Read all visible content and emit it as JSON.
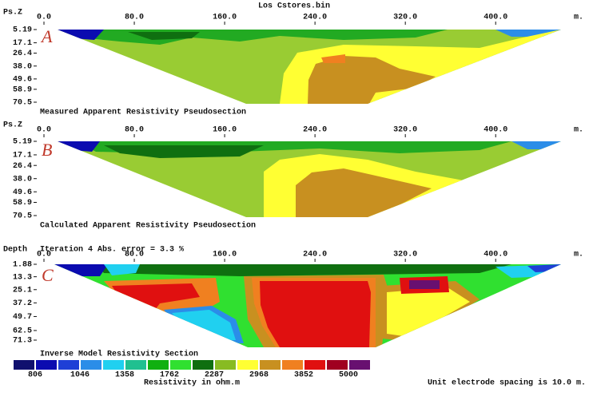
{
  "title": "Los Cstores.bin",
  "chart_data": [
    {
      "type": "pseudosection",
      "panel_label": "A",
      "y_label": "Ps.Z",
      "x_unit": "m.",
      "caption": "Measured Apparent Resistivity Pseudosection",
      "xlim": [
        0,
        460
      ],
      "xticks": [
        {
          "value": 0,
          "label": "0.0"
        },
        {
          "value": 80,
          "label": "80.0"
        },
        {
          "value": 160,
          "label": "160.0"
        },
        {
          "value": 240,
          "label": "240.0"
        },
        {
          "value": 320,
          "label": "320.0"
        },
        {
          "value": 400,
          "label": "400.0"
        }
      ],
      "ylim": [
        5.19,
        70.5
      ],
      "yticks": [
        5.19,
        17.1,
        26.4,
        {
          "value": 38,
          "label": "38.0"
        },
        49.6,
        58.9,
        70.5
      ]
    },
    {
      "type": "pseudosection",
      "panel_label": "B",
      "y_label": "Ps.Z",
      "x_unit": "m.",
      "caption": "Calculated Apparent Resistivity Pseudosection",
      "xlim": [
        0,
        460
      ],
      "xticks": [
        {
          "value": 0,
          "label": "0.0"
        },
        {
          "value": 80,
          "label": "80.0"
        },
        {
          "value": 160,
          "label": "160.0"
        },
        {
          "value": 240,
          "label": "240.0"
        },
        {
          "value": 320,
          "label": "320.0"
        },
        {
          "value": 400,
          "label": "400.0"
        }
      ],
      "ylim": [
        5.19,
        70.5
      ],
      "yticks": [
        5.19,
        17.1,
        26.4,
        {
          "value": 38,
          "label": "38.0"
        },
        49.6,
        58.9,
        70.5
      ]
    },
    {
      "type": "pseudosection",
      "panel_label": "C",
      "y_label": "Depth",
      "x_unit": "m.",
      "subtitle": "Iteration 4 Abs. error = 3.3 %",
      "caption": "Inverse Model Resistivity Section",
      "xlim": [
        0,
        460
      ],
      "xticks": [
        {
          "value": 0,
          "label": "0.0"
        },
        {
          "value": 80,
          "label": "80.0"
        },
        {
          "value": 160,
          "label": "160.0"
        },
        {
          "value": 240,
          "label": "240.0"
        },
        {
          "value": 320,
          "label": "320.0"
        },
        {
          "value": 400,
          "label": "400.0"
        }
      ],
      "ylim": [
        1.88,
        71.3
      ],
      "yticks": [
        1.88,
        13.3,
        25.1,
        37.2,
        49.7,
        62.5,
        71.3
      ],
      "colorbar": {
        "title": "Resistivity in ohm.m",
        "colors": [
          "#10106e",
          "#0b0bb0",
          "#1f3fd6",
          "#2b8de8",
          "#20d0f0",
          "#20c090",
          "#10b010",
          "#30e030",
          "#0f6f10",
          "#88bb22",
          "#ffff33",
          "#c89020",
          "#f08020",
          "#e01010",
          "#a00020",
          "#681070"
        ],
        "labels": [
          806,
          1046,
          1358,
          1762,
          2287,
          2968,
          3852,
          5000
        ]
      },
      "note": "Unit electrode spacing is 10.0 m."
    }
  ]
}
